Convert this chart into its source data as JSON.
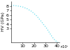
{
  "title": "",
  "xlabel": "",
  "ylabel": "HV (GPa)",
  "x_data": [
    0,
    30,
    60,
    100,
    140,
    180,
    220,
    260,
    290,
    310,
    330,
    350,
    370,
    390,
    410
  ],
  "y_data": [
    8.15,
    8.1,
    8.0,
    7.8,
    7.4,
    6.8,
    5.9,
    4.7,
    3.7,
    3.1,
    2.3,
    1.5,
    0.8,
    0.3,
    0.05
  ],
  "line_color": "#66ddee",
  "line_style": "dotted",
  "line_width": 0.9,
  "xlim": [
    0,
    420
  ],
  "ylim": [
    0,
    9
  ],
  "xticks": [
    100,
    200,
    300,
    400
  ],
  "yticks": [
    3,
    4,
    5,
    6,
    7,
    8
  ],
  "xtick_labels": [
    "10",
    "20",
    "30",
    "40"
  ],
  "ytick_labels": [
    "3",
    "4",
    "5",
    "6",
    "7",
    "8"
  ],
  "x_scale_note": "×10²",
  "bg_color": "#ffffff",
  "tick_fontsize": 4.5,
  "label_fontsize": 4.5
}
